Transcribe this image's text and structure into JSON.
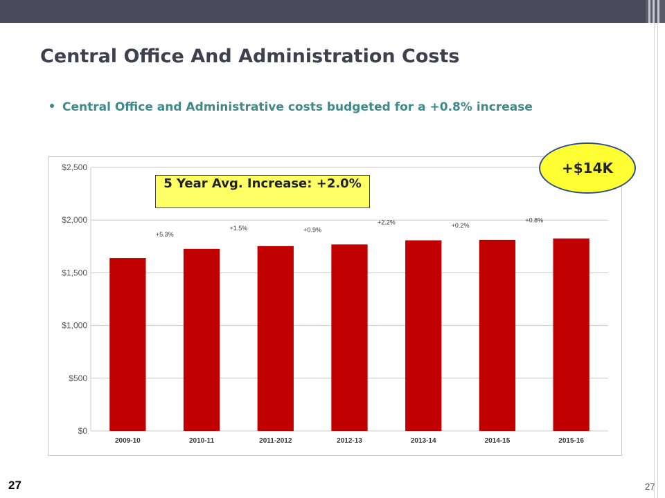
{
  "slide": {
    "title": "Central Office And Administration Costs",
    "bullet": "Central Office and Administrative costs budgeted for a +0.8% increase",
    "page_number_left": "27",
    "page_number_right": "27"
  },
  "callouts": {
    "average_box": "5 Year Avg. Increase: +2.0%",
    "oval": "+$14K"
  },
  "colors": {
    "bar": "#c00000",
    "title": "#3f3f50",
    "bullet": "#3e8a8a",
    "callout_fill": "#ffff66"
  },
  "chart_data": {
    "type": "bar",
    "categories": [
      "2009-10",
      "2010-11",
      "2011-2012",
      "2012-13",
      "2013-14",
      "2014-15",
      "2015-16"
    ],
    "series": [
      {
        "values": [
          1640,
          1727,
          1753,
          1769,
          1808,
          1812,
          1826
        ]
      }
    ],
    "annotations": [
      "+5.3%",
      "+1.5%",
      "+0.9%",
      "+2.2%",
      "+0.2%",
      "+0.8%"
    ],
    "y_ticks": [
      "$0",
      "$500",
      "$1,000",
      "$1,500",
      "$2,000",
      "$2,500"
    ],
    "ylim": [
      0,
      2500
    ],
    "grid": true,
    "legend": "none"
  }
}
